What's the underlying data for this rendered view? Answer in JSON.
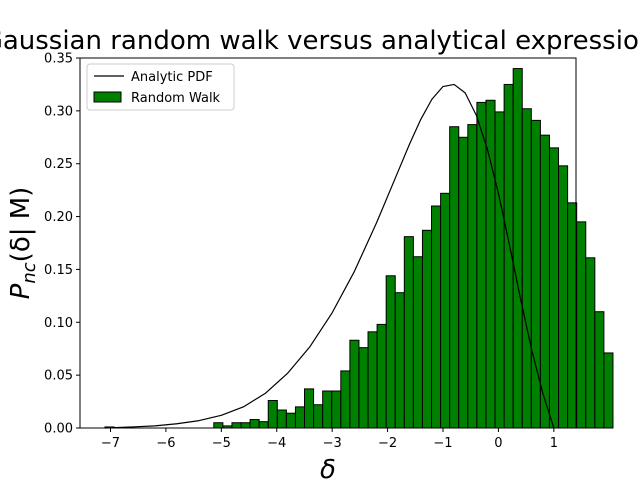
{
  "chart_data": {
    "type": "bar",
    "title": "Gaussian random walk versus analytical expression",
    "xlabel": "δ",
    "ylabel": "P_nc(δ| M)",
    "xlim": [
      -7.55,
      1.4
    ],
    "ylim": [
      0.0,
      0.35
    ],
    "xticks": [
      -7,
      -6,
      -5,
      -4,
      -3,
      -2,
      -1,
      0,
      1
    ],
    "yticks": [
      0.0,
      0.05,
      0.1,
      0.15,
      0.2,
      0.25,
      0.3,
      0.35
    ],
    "xtick_labels": [
      "−7",
      "−6",
      "−5",
      "−4",
      "−3",
      "−2",
      "−1",
      "0",
      "1"
    ],
    "ytick_labels": [
      "0.00",
      "0.05",
      "0.10",
      "0.15",
      "0.20",
      "0.25",
      "0.30",
      "0.35"
    ],
    "grid": false,
    "legend": {
      "placement": "top-left",
      "entries": [
        "Analytic PDF",
        "Random Walk"
      ]
    },
    "series": [
      {
        "name": "Random Walk",
        "kind": "histogram",
        "color": "#008000",
        "edgecolor": "#000000",
        "bin_width": 0.1637,
        "bin_edges_start": -7.1,
        "values": [
          0.001,
          0,
          0,
          0,
          0,
          0,
          0,
          0,
          0,
          0,
          0,
          0,
          0.005,
          0.002,
          0.005,
          0.005,
          0.008,
          0.006,
          0.026,
          0.017,
          0.014,
          0.02,
          0.037,
          0.022,
          0.035,
          0.035,
          0.054,
          0.083,
          0.076,
          0.091,
          0.098,
          0.144,
          0.128,
          0.181,
          0.162,
          0.187,
          0.21,
          0.222,
          0.285,
          0.275,
          0.287,
          0.308,
          0.31,
          0.299,
          0.325,
          0.34,
          0.302,
          0.291,
          0.277,
          0.265,
          0.248,
          0.213,
          0.195,
          0.161,
          0.11,
          0.071
        ]
      },
      {
        "name": "Analytic PDF",
        "kind": "line",
        "color": "#000000",
        "x": [
          -7.1,
          -6.6,
          -6.2,
          -5.8,
          -5.4,
          -5.0,
          -4.6,
          -4.2,
          -3.8,
          -3.4,
          -3.0,
          -2.6,
          -2.2,
          -1.8,
          -1.6,
          -1.4,
          -1.2,
          -1.0,
          -0.8,
          -0.6,
          -0.4,
          -0.2,
          0.0,
          0.2,
          0.4,
          0.6,
          0.8,
          1.0
        ],
        "y": [
          0.0,
          0.001,
          0.002,
          0.004,
          0.007,
          0.012,
          0.02,
          0.033,
          0.052,
          0.077,
          0.109,
          0.148,
          0.194,
          0.244,
          0.269,
          0.292,
          0.311,
          0.323,
          0.325,
          0.317,
          0.296,
          0.264,
          0.222,
          0.173,
          0.122,
          0.074,
          0.033,
          0.0
        ]
      }
    ]
  }
}
